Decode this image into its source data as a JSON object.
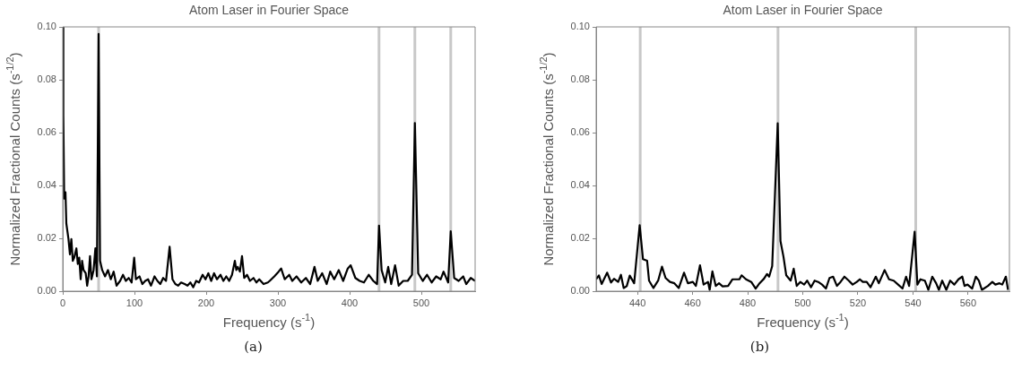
{
  "chart_data": [
    {
      "type": "line",
      "title": "Atom Laser in Fourier Space",
      "xlabel": "Frequency (s$^{-1}$)",
      "ylabel": "Normalized Fractional Counts (s$^{-1/2}$)",
      "annotations": [
        "(a)"
      ],
      "xlim": [
        0,
        575
      ],
      "xticks": [
        0,
        100,
        200,
        300,
        400,
        500
      ],
      "ylim": [
        0,
        0.1
      ],
      "yticks": [
        {
          "value": 0,
          "label": "0.00"
        },
        {
          "value": 0.02,
          "label": "0.02"
        },
        {
          "value": 0.04,
          "label": "0.04"
        },
        {
          "value": 0.06,
          "label": "0.06"
        },
        {
          "value": 0.08,
          "label": "0.08"
        },
        {
          "value": 0.1,
          "label": "0.10"
        }
      ],
      "grid": false,
      "marker": "none",
      "ref_lines": [
        {
          "axis": "x",
          "value": 50,
          "color": "#c8c8c8"
        },
        {
          "axis": "x",
          "value": 441,
          "color": "#c8c8c8"
        },
        {
          "axis": "x",
          "value": 491,
          "color": "#c8c8c8"
        },
        {
          "axis": "x",
          "value": 541,
          "color": "#c8c8c8"
        }
      ],
      "series": [
        {
          "color": "#000000",
          "x": [
            0,
            0.8,
            2,
            3.8,
            5,
            8,
            10,
            12,
            14,
            16,
            19,
            21,
            23,
            25,
            27,
            29,
            32,
            34,
            36,
            38,
            40,
            43,
            45.5,
            47.6,
            50,
            52,
            55,
            59,
            63,
            67,
            71,
            75,
            80,
            84,
            88,
            92,
            96,
            99.6,
            102,
            107,
            111,
            115,
            119,
            123,
            128,
            132,
            136,
            140,
            144,
            149,
            153,
            157,
            161,
            165,
            170,
            174,
            178,
            182,
            186,
            190,
            195,
            199,
            203,
            207,
            211,
            215,
            220,
            224,
            228,
            232,
            236,
            240,
            242,
            244,
            247,
            250,
            253,
            257,
            261,
            266,
            270,
            274,
            280,
            286,
            288.6,
            295,
            301,
            304.5,
            309.5,
            315.8,
            320,
            326,
            332.5,
            339,
            345,
            351,
            355.5,
            361.7,
            368,
            373,
            378.5,
            384.8,
            391,
            397.4,
            401.5,
            408,
            414,
            420,
            426.6,
            433,
            438.3,
            441,
            444.6,
            449.6,
            453.8,
            458,
            463.4,
            468.4,
            474.7,
            481,
            487,
            491,
            495.6,
            502,
            508,
            514.4,
            520.7,
            527,
            531,
            537.4,
            541,
            545.8,
            552,
            558.4,
            562.6,
            568.9,
            575
          ],
          "values": [
            0.1,
            0.0667,
            0.035,
            0.0374,
            0.0256,
            0.0197,
            0.0139,
            0.0197,
            0.0115,
            0.0127,
            0.0162,
            0.0103,
            0.0127,
            0.0045,
            0.0115,
            0.008,
            0.0068,
            0.0021,
            0.0056,
            0.0133,
            0.0045,
            0.008,
            0.0162,
            0.0056,
            0.0973,
            0.0115,
            0.008,
            0.0056,
            0.008,
            0.0045,
            0.0074,
            0.0021,
            0.0039,
            0.0062,
            0.0039,
            0.005,
            0.0033,
            0.0127,
            0.0045,
            0.0056,
            0.0027,
            0.0039,
            0.0045,
            0.0021,
            0.0056,
            0.0039,
            0.0027,
            0.005,
            0.0039,
            0.0168,
            0.0045,
            0.0027,
            0.0021,
            0.0033,
            0.0027,
            0.0021,
            0.0033,
            0.0015,
            0.0039,
            0.0033,
            0.0062,
            0.0045,
            0.0068,
            0.0039,
            0.0068,
            0.0045,
            0.0062,
            0.0039,
            0.0056,
            0.0039,
            0.0062,
            0.0115,
            0.008,
            0.0092,
            0.0074,
            0.0133,
            0.005,
            0.0062,
            0.0039,
            0.005,
            0.0033,
            0.0045,
            0.0027,
            0.0033,
            0.0039,
            0.0056,
            0.0074,
            0.0086,
            0.0045,
            0.0062,
            0.0039,
            0.0056,
            0.0033,
            0.005,
            0.0027,
            0.0092,
            0.0039,
            0.0068,
            0.0027,
            0.0074,
            0.0045,
            0.008,
            0.0039,
            0.0086,
            0.0098,
            0.005,
            0.0039,
            0.0033,
            0.0062,
            0.0039,
            0.0027,
            0.0248,
            0.008,
            0.0033,
            0.0092,
            0.0027,
            0.0098,
            0.0021,
            0.0039,
            0.0039,
            0.0062,
            0.0636,
            0.0068,
            0.0039,
            0.0062,
            0.0033,
            0.0056,
            0.0045,
            0.0074,
            0.0033,
            0.0227,
            0.005,
            0.0039,
            0.0056,
            0.0027,
            0.005,
            0.0039
          ]
        }
      ]
    },
    {
      "type": "line",
      "title": "Atom Laser in Fourier Space",
      "xlabel": "Frequency (s$^{-1}$)",
      "ylabel": "Normalized Fractional Counts (s$^{-1/2}$)",
      "annotations": [
        "(b)"
      ],
      "xlim": [
        425,
        575
      ],
      "xticks": [
        440,
        460,
        480,
        500,
        520,
        540,
        560
      ],
      "ylim": [
        0,
        0.1
      ],
      "yticks": [
        {
          "value": 0,
          "label": "0.00"
        },
        {
          "value": 0.02,
          "label": "0.02"
        },
        {
          "value": 0.04,
          "label": "0.04"
        },
        {
          "value": 0.06,
          "label": "0.06"
        },
        {
          "value": 0.08,
          "label": "0.08"
        },
        {
          "value": 0.1,
          "label": "0.10"
        }
      ],
      "grid": false,
      "marker": "none",
      "ref_lines": [
        {
          "axis": "x",
          "value": 441,
          "color": "#c8c8c8"
        },
        {
          "axis": "x",
          "value": 491,
          "color": "#c8c8c8"
        },
        {
          "axis": "x",
          "value": 541,
          "color": "#c8c8c8"
        }
      ],
      "series": [
        {
          "color": "#000000",
          "x": [
            425,
            426,
            427,
            429,
            430.4,
            431.5,
            433,
            434,
            435,
            436.1,
            437.2,
            438.8,
            440.8,
            442,
            443.5,
            444.2,
            445.8,
            447.5,
            448.9,
            450.2,
            451.8,
            453.4,
            455,
            456.9,
            458.3,
            460.1,
            461.2,
            462.7,
            464,
            465.6,
            466.2,
            467.2,
            468.4,
            469.6,
            470.9,
            472.9,
            474.5,
            475.3,
            477,
            477.8,
            479.4,
            481.3,
            482.9,
            484.3,
            485.9,
            487,
            487.8,
            488.9,
            490.9,
            491.9,
            493,
            494,
            495.6,
            496.7,
            497.8,
            499.1,
            500.5,
            501.6,
            503,
            504.3,
            505.6,
            507,
            508.4,
            509.7,
            511,
            512.4,
            513.7,
            515.1,
            516.7,
            518.1,
            519.6,
            520.7,
            521.8,
            523.2,
            524.6,
            526.5,
            527.6,
            529.7,
            531.3,
            533,
            534.6,
            536.2,
            537.5,
            538.6,
            540.6,
            541.6,
            542.7,
            544.3,
            545.6,
            547,
            548.4,
            549.4,
            550.6,
            552.1,
            553.5,
            555,
            556.5,
            557.9,
            558.7,
            559.8,
            561.5,
            562.8,
            563.9,
            565,
            567.2,
            568.8,
            569.9,
            571.4,
            572.4,
            573.7,
            574.5
          ],
          "values": [
            0.0045,
            0.006,
            0.0027,
            0.007,
            0.0033,
            0.0047,
            0.0035,
            0.0062,
            0.0012,
            0.0019,
            0.0059,
            0.003,
            0.025,
            0.0121,
            0.0115,
            0.004,
            0.0012,
            0.004,
            0.0093,
            0.005,
            0.0035,
            0.003,
            0.0012,
            0.007,
            0.003,
            0.0035,
            0.002,
            0.0098,
            0.0025,
            0.0035,
            0.0005,
            0.0075,
            0.002,
            0.003,
            0.0018,
            0.002,
            0.0045,
            0.0045,
            0.0045,
            0.006,
            0.0045,
            0.0035,
            0.001,
            0.003,
            0.0047,
            0.0065,
            0.0055,
            0.0095,
            0.0635,
            0.019,
            0.013,
            0.006,
            0.004,
            0.0085,
            0.002,
            0.0035,
            0.0025,
            0.004,
            0.0015,
            0.004,
            0.0035,
            0.0025,
            0.001,
            0.005,
            0.0055,
            0.002,
            0.0035,
            0.0055,
            0.004,
            0.0025,
            0.0035,
            0.0045,
            0.0035,
            0.0035,
            0.0015,
            0.0055,
            0.003,
            0.008,
            0.0045,
            0.004,
            0.0025,
            0.001,
            0.0055,
            0.002,
            0.0225,
            0.0025,
            0.0045,
            0.004,
            0.0005,
            0.0055,
            0.003,
            0.0005,
            0.004,
            0.0005,
            0.004,
            0.0025,
            0.0045,
            0.0055,
            0.002,
            0.0025,
            0.001,
            0.0055,
            0.004,
            0.0005,
            0.002,
            0.0035,
            0.0025,
            0.003,
            0.0025,
            0.0055,
            0.0005
          ]
        }
      ]
    }
  ]
}
